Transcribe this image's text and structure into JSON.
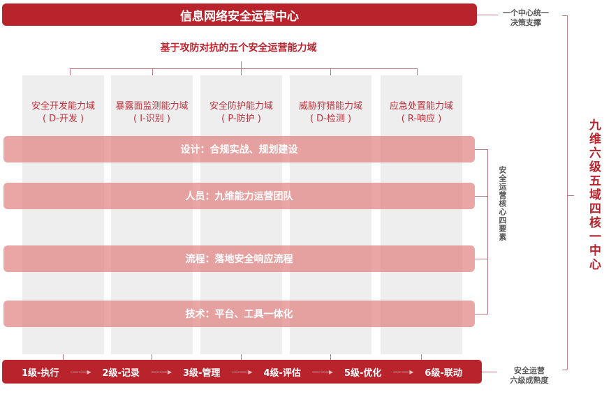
{
  "title": "信息网络安全运营中心",
  "subtitle": "基于攻防对抗的五个安全运营能力域",
  "domains": [
    {
      "name": "安全开发能力域",
      "code": "( D-开发 )"
    },
    {
      "name": "暴露面监测能力域",
      "code": "( I-识别 )"
    },
    {
      "name": "安全防护能力域",
      "code": "( P-防护 )"
    },
    {
      "name": "威胁狩猎能力域",
      "code": "( D-检测 )"
    },
    {
      "name": "应急处置能力域",
      "code": "( R-响应 )"
    }
  ],
  "elements": [
    "设计：合规实战、规划建设",
    "人员：九维能力运营团队",
    "流程：落地安全响应流程",
    "技术：平台、工具一体化"
  ],
  "levels": [
    "1级-执行",
    "2级-记录",
    "3级-管理",
    "4级-评估",
    "5级-优化",
    "6级-联动"
  ],
  "side": {
    "center_note_1": "一个中心统一",
    "center_note_2": "决策支撑",
    "elements_note": "安全运营核心四要素",
    "levels_note_1": "安全运营",
    "levels_note_2": "六级成熟度",
    "summary": "九维六级五域四核一中心"
  },
  "colors": {
    "primary": "#b8232c",
    "band": "#e28282",
    "column": "#eeeeee"
  }
}
